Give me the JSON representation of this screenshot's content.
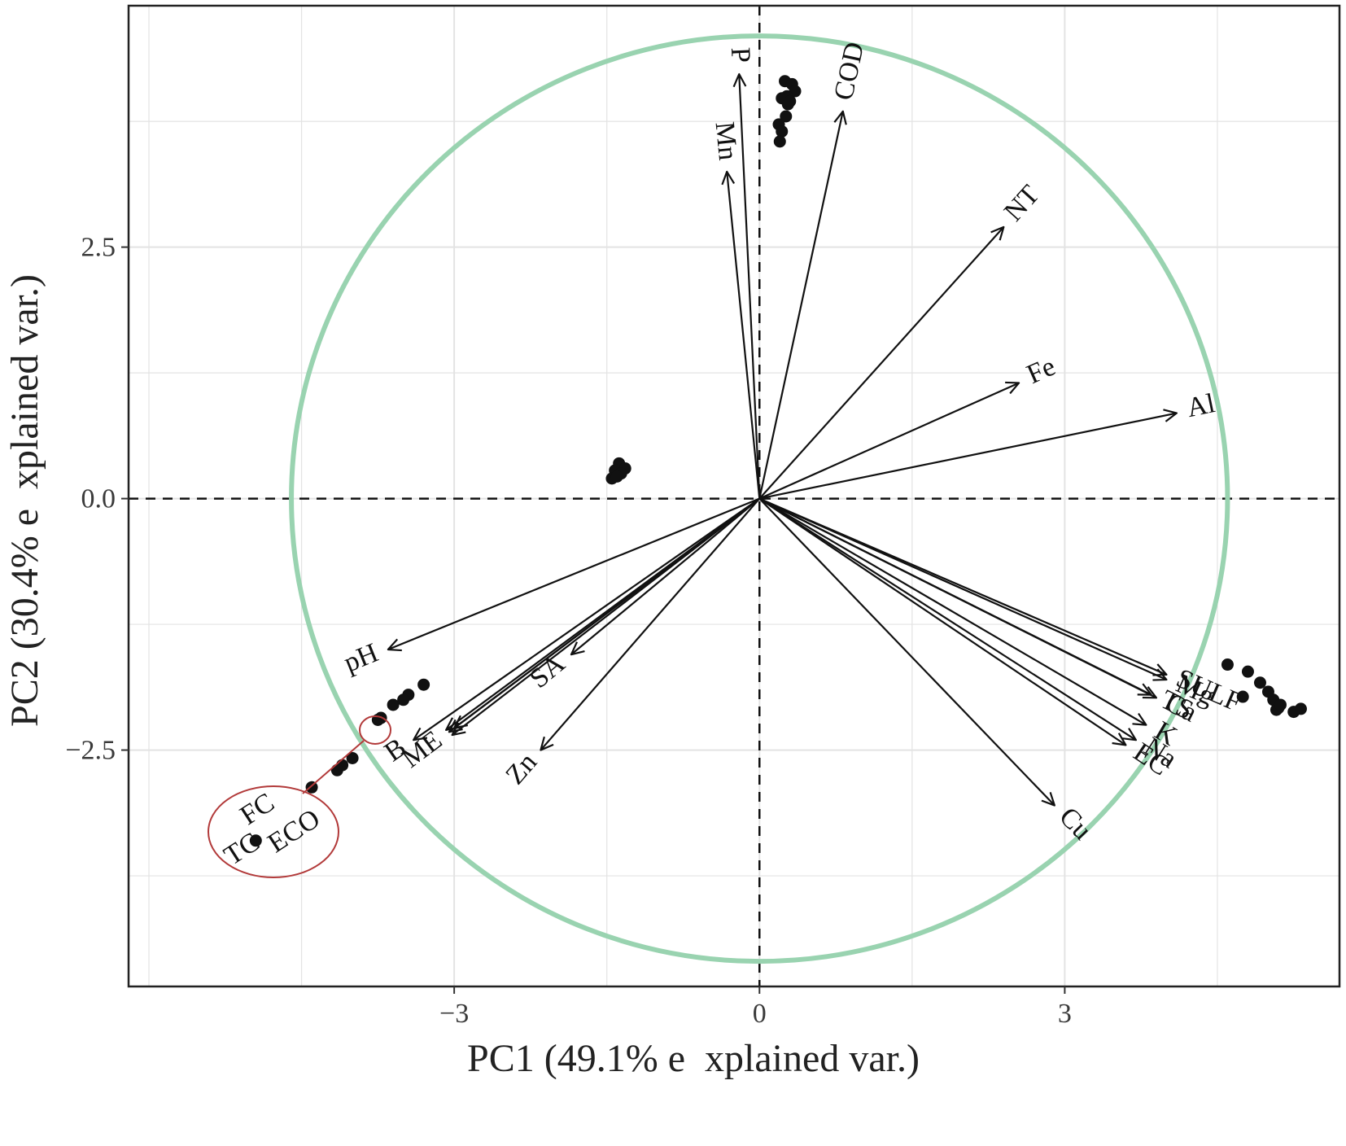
{
  "chart_data": {
    "type": "scatter",
    "subtype": "pca-biplot",
    "xlabel": "PC1 (49.1% e  xplained var.)",
    "ylabel": "PC2 (30.4% e  xplained var.)",
    "xlim": [
      -6.2,
      5.7
    ],
    "ylim": [
      -4.85,
      4.9
    ],
    "x_ticks": [
      {
        "value": -3,
        "label": "−3"
      },
      {
        "value": 0,
        "label": "0"
      },
      {
        "value": 3,
        "label": "3"
      }
    ],
    "y_ticks": [
      {
        "value": 2.5,
        "label": "2.5"
      },
      {
        "value": 0,
        "label": "0.0"
      },
      {
        "value": -2.5,
        "label": "−2.5"
      }
    ],
    "grid": true,
    "zero_lines": "dashed",
    "correlation_circle": {
      "radius": 4.6,
      "color": "#99d3b0"
    },
    "colors": {
      "points": "#111111",
      "arrows": "#111111",
      "grid": "#e3e3e3",
      "circle": "#99d3b0",
      "annotation": "#b23a3a"
    },
    "points": [
      {
        "x": 0.25,
        "y": 4.15
      },
      {
        "x": 0.32,
        "y": 4.12
      },
      {
        "x": 0.35,
        "y": 4.05
      },
      {
        "x": 0.27,
        "y": 4.0
      },
      {
        "x": 0.22,
        "y": 3.98
      },
      {
        "x": 0.28,
        "y": 3.92
      },
      {
        "x": 0.3,
        "y": 3.95
      },
      {
        "x": 0.26,
        "y": 3.8
      },
      {
        "x": 0.19,
        "y": 3.72
      },
      {
        "x": 0.22,
        "y": 3.65
      },
      {
        "x": 0.2,
        "y": 3.55
      },
      {
        "x": -1.38,
        "y": 0.35
      },
      {
        "x": -1.32,
        "y": 0.3
      },
      {
        "x": -1.42,
        "y": 0.28
      },
      {
        "x": -1.36,
        "y": 0.25
      },
      {
        "x": -1.45,
        "y": 0.2
      },
      {
        "x": -1.4,
        "y": 0.22
      },
      {
        "x": 4.6,
        "y": -1.65
      },
      {
        "x": 4.8,
        "y": -1.72
      },
      {
        "x": 4.92,
        "y": -1.83
      },
      {
        "x": 5.0,
        "y": -1.92
      },
      {
        "x": 4.75,
        "y": -1.97
      },
      {
        "x": 5.05,
        "y": -2.0
      },
      {
        "x": 5.1,
        "y": -2.08
      },
      {
        "x": 5.08,
        "y": -2.1
      },
      {
        "x": 5.12,
        "y": -2.05
      },
      {
        "x": 5.25,
        "y": -2.12
      },
      {
        "x": 5.32,
        "y": -2.09
      },
      {
        "x": -3.3,
        "y": -1.85
      },
      {
        "x": -3.45,
        "y": -1.95
      },
      {
        "x": -3.5,
        "y": -2.0
      },
      {
        "x": -3.6,
        "y": -2.05
      },
      {
        "x": -3.72,
        "y": -2.18
      },
      {
        "x": -3.75,
        "y": -2.2
      },
      {
        "x": -4.0,
        "y": -2.58
      },
      {
        "x": -4.1,
        "y": -2.65
      },
      {
        "x": -4.15,
        "y": -2.7
      },
      {
        "x": -4.4,
        "y": -2.87
      },
      {
        "x": -4.95,
        "y": -3.4
      }
    ],
    "loadings": [
      {
        "name": "P",
        "x": -0.2,
        "y": 4.22
      },
      {
        "name": "Mn",
        "x": -0.32,
        "y": 3.25
      },
      {
        "name": "COD",
        "x": 0.82,
        "y": 3.85
      },
      {
        "name": "NT",
        "x": 2.4,
        "y": 2.7
      },
      {
        "name": "Fe",
        "x": 2.55,
        "y": 1.15
      },
      {
        "name": "Al",
        "x": 4.1,
        "y": 0.85
      },
      {
        "name": "SULF",
        "x": 4.0,
        "y": -1.75
      },
      {
        "name": "Mg",
        "x": 4.0,
        "y": -1.8
      },
      {
        "name": "TS",
        "x": 3.85,
        "y": -1.95
      },
      {
        "name": "Ca",
        "x": 3.9,
        "y": -1.98
      },
      {
        "name": "K",
        "x": 3.8,
        "y": -2.25
      },
      {
        "name": "Na",
        "x": 3.7,
        "y": -2.4
      },
      {
        "name": "EC",
        "x": 3.6,
        "y": -2.45
      },
      {
        "name": "Cu",
        "x": 2.9,
        "y": -3.05
      },
      {
        "name": "pH",
        "x": -3.65,
        "y": -1.5
      },
      {
        "name": "SA",
        "x": -1.85,
        "y": -1.55
      },
      {
        "name": "Zn",
        "x": -2.15,
        "y": -2.5
      },
      {
        "name": "B",
        "x": -3.4,
        "y": -2.4
      },
      {
        "name": "ME",
        "x": -3.05,
        "y": -2.32
      },
      {
        "name": "FC",
        "x": -3.08,
        "y": -2.3
      },
      {
        "name": "TC",
        "x": -3.02,
        "y": -2.35
      },
      {
        "name": "ECO",
        "x": -3.0,
        "y": -2.28
      }
    ],
    "annotations": [
      "FC",
      "TC",
      "ECO"
    ]
  }
}
